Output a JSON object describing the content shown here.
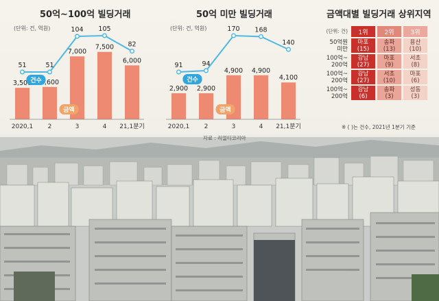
{
  "chart_data": [
    {
      "type": "bar",
      "title": "50억~100억 빌딩거래",
      "unit_note": "(단위: 건, 억원)",
      "categories": [
        "2020,1",
        "2",
        "3",
        "4",
        "21,1분기"
      ],
      "series": [
        {
          "name": "금액",
          "kind": "bar",
          "values": [
            3500,
            3600,
            7000,
            7500,
            6000
          ],
          "labels": [
            "3,500",
            "3,600",
            "7,000",
            "7,500",
            "6,000"
          ]
        },
        {
          "name": "건수",
          "kind": "line",
          "values": [
            51,
            51,
            104,
            105,
            82
          ],
          "labels": [
            "51",
            "51",
            "104",
            "105",
            "82"
          ]
        }
      ],
      "colors": {
        "bar": "#ef8a72",
        "line": "#4cb9e4",
        "badge_count": "#2fa6de",
        "badge_amount": "#f0a46a"
      }
    },
    {
      "type": "bar",
      "title": "50억 미만 빌딩거래",
      "unit_note": "(단위: 건, 억원)",
      "categories": [
        "2020,1",
        "2",
        "3",
        "4",
        "21,1분기"
      ],
      "series": [
        {
          "name": "금액",
          "kind": "bar",
          "values": [
            2900,
            2900,
            4900,
            4900,
            4100
          ],
          "labels": [
            "2,900",
            "2,900",
            "4,900",
            "4,900",
            "4,100"
          ]
        },
        {
          "name": "건수",
          "kind": "line",
          "values": [
            91,
            94,
            170,
            168,
            140
          ],
          "labels": [
            "91",
            "94",
            "170",
            "168",
            "140"
          ]
        }
      ],
      "colors": {
        "bar": "#ef8a72",
        "line": "#4cb9e4",
        "badge_count": "#2fa6de",
        "badge_amount": "#f0a46a"
      }
    },
    {
      "type": "table",
      "title": "금액대별 빌딩거래 상위지역",
      "unit_note": "(단위: 건)",
      "columns": [
        "1위",
        "2위",
        "3위"
      ],
      "rows": [
        {
          "label_line1": "50억원",
          "label_line2": "미만",
          "cells": [
            [
              "마포",
              "(15)"
            ],
            [
              "송파",
              "(13)"
            ],
            [
              "용산",
              "(10)"
            ]
          ]
        },
        {
          "label_line1": "100억~",
          "label_line2": "200억",
          "cells": [
            [
              "강남",
              "(27)"
            ],
            [
              "마포",
              "(9)"
            ],
            [
              "서초",
              "(8)"
            ]
          ]
        },
        {
          "label_line1": "100억~",
          "label_line2": "200억",
          "cells": [
            [
              "강남",
              "(27)"
            ],
            [
              "서초",
              "(10)"
            ],
            [
              "마포",
              "(6)"
            ]
          ]
        },
        {
          "label_line1": "100억~",
          "label_line2": "200억",
          "cells": [
            [
              "강남",
              "(6)"
            ],
            [
              "송파",
              "(3)"
            ],
            [
              "성동",
              "(3)"
            ]
          ]
        }
      ],
      "footnote": "※ (  )는 건수, 2021년 1분기 기준"
    }
  ],
  "source": "자료 : 리얼티코리아",
  "badges": {
    "count": "건수",
    "amount": "금액"
  }
}
